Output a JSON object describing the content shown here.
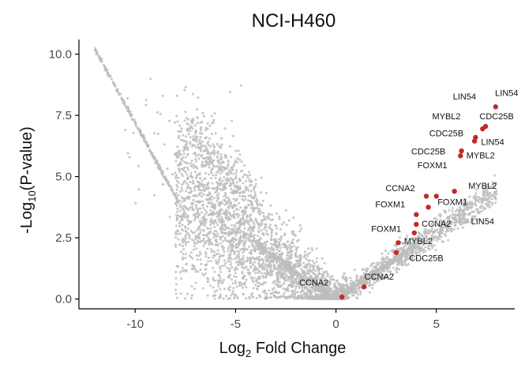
{
  "chart_data": {
    "type": "scatter",
    "title": "NCI-H460",
    "xlabel_base": "Log",
    "xlabel_sub": "2",
    "xlabel_rest": " Fold Change",
    "ylabel_pre": "-Log",
    "ylabel_sub": "10",
    "ylabel_post": "(P-value)",
    "xlim": [
      -12.8,
      8.9
    ],
    "ylim": [
      -0.4,
      10.6
    ],
    "xticks": [
      -10,
      -5,
      0,
      5
    ],
    "yticks": [
      0.0,
      2.5,
      5.0,
      7.5,
      10.0
    ],
    "xtick_labels": [
      "-10",
      "-5",
      "0",
      "5"
    ],
    "ytick_labels": [
      "0.0",
      "2.5",
      "5.0",
      "7.5",
      "10.0"
    ],
    "grid": false,
    "colors": {
      "background_points": "#bdbdbd",
      "highlight_points": "#c62828",
      "axis": "#000000",
      "label_text": "#000000"
    },
    "highlight_points": [
      {
        "x": 0.3,
        "y": 0.08
      },
      {
        "x": 1.4,
        "y": 0.5
      },
      {
        "x": 3.0,
        "y": 1.9
      },
      {
        "x": 3.1,
        "y": 2.3
      },
      {
        "x": 3.9,
        "y": 2.7
      },
      {
        "x": 4.0,
        "y": 3.05
      },
      {
        "x": 4.0,
        "y": 3.45
      },
      {
        "x": 4.6,
        "y": 3.75
      },
      {
        "x": 4.5,
        "y": 4.2
      },
      {
        "x": 5.0,
        "y": 4.2
      },
      {
        "x": 5.9,
        "y": 4.4
      },
      {
        "x": 6.2,
        "y": 5.85
      },
      {
        "x": 6.25,
        "y": 6.05
      },
      {
        "x": 6.9,
        "y": 6.45
      },
      {
        "x": 6.95,
        "y": 6.6
      },
      {
        "x": 7.3,
        "y": 6.95
      },
      {
        "x": 7.45,
        "y": 7.05
      },
      {
        "x": 7.95,
        "y": 7.85
      }
    ],
    "gene_labels": [
      {
        "text": "CCNA2",
        "x": -1.1,
        "y": 0.55
      },
      {
        "text": "CCNA2",
        "x": 2.15,
        "y": 0.8
      },
      {
        "text": "CDC25B",
        "x": 4.5,
        "y": 1.55
      },
      {
        "text": "MYBL2",
        "x": 4.1,
        "y": 2.25
      },
      {
        "text": "FOXM1",
        "x": 2.5,
        "y": 2.75
      },
      {
        "text": "CCNA2",
        "x": 5.0,
        "y": 2.95
      },
      {
        "text": "LIN54",
        "x": 7.3,
        "y": 3.05
      },
      {
        "text": "FOXM1",
        "x": 2.7,
        "y": 3.75
      },
      {
        "text": "FOXM1",
        "x": 5.8,
        "y": 3.85
      },
      {
        "text": "CCNA2",
        "x": 3.2,
        "y": 4.4
      },
      {
        "text": "MYBL2",
        "x": 7.3,
        "y": 4.5
      },
      {
        "text": "FOXM1",
        "x": 4.8,
        "y": 5.35
      },
      {
        "text": "CDC25B",
        "x": 4.6,
        "y": 5.9
      },
      {
        "text": "MYBL2",
        "x": 7.2,
        "y": 5.75
      },
      {
        "text": "CDC25B",
        "x": 5.5,
        "y": 6.65
      },
      {
        "text": "LIN54",
        "x": 7.8,
        "y": 6.3
      },
      {
        "text": "MYBL2",
        "x": 5.5,
        "y": 7.35
      },
      {
        "text": "CDC25B",
        "x": 8.0,
        "y": 7.35
      },
      {
        "text": "LIN54",
        "x": 6.4,
        "y": 8.15
      },
      {
        "text": "LIN54",
        "x": 8.5,
        "y": 8.3
      }
    ]
  }
}
